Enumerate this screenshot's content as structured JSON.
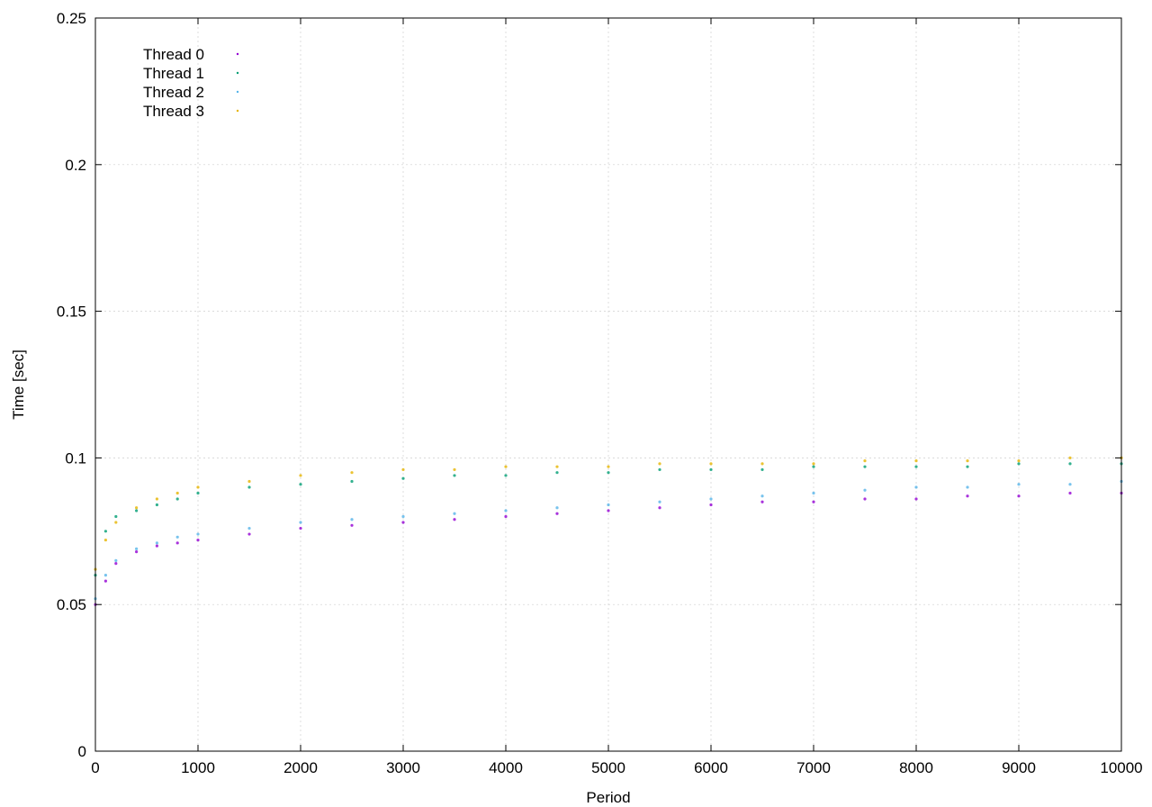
{
  "chart_data": {
    "type": "scatter",
    "title": "",
    "xlabel": "Period",
    "ylabel": "Time [sec]",
    "xlim": [
      0,
      10000
    ],
    "ylim": [
      0,
      0.25
    ],
    "x_ticks": [
      0,
      1000,
      2000,
      3000,
      4000,
      5000,
      6000,
      7000,
      8000,
      9000,
      10000
    ],
    "x_tick_labels": [
      "0",
      "1000",
      "2000",
      "3000",
      "4000",
      "5000",
      "6000",
      "7000",
      "8000",
      "9000",
      "10000"
    ],
    "y_ticks": [
      0,
      0.05,
      0.1,
      0.15,
      0.2,
      0.25
    ],
    "y_tick_labels": [
      "0",
      "0.05",
      "0.1",
      "0.15",
      "0.2",
      "0.25"
    ],
    "grid": true,
    "legend_position": "top-left",
    "series": [
      {
        "name": "Thread 0",
        "color": "#9400d3",
        "x": [
          0,
          100,
          200,
          400,
          600,
          800,
          1000,
          1500,
          2000,
          2500,
          3000,
          3500,
          4000,
          4500,
          5000,
          5500,
          6000,
          6500,
          7000,
          7500,
          8000,
          8500,
          9000,
          9500,
          10000
        ],
        "y": [
          0.05,
          0.058,
          0.064,
          0.068,
          0.07,
          0.071,
          0.072,
          0.074,
          0.076,
          0.077,
          0.078,
          0.079,
          0.08,
          0.081,
          0.082,
          0.083,
          0.084,
          0.085,
          0.085,
          0.086,
          0.086,
          0.087,
          0.087,
          0.088,
          0.088
        ]
      },
      {
        "name": "Thread 1",
        "color": "#009e73",
        "x": [
          0,
          100,
          200,
          400,
          600,
          800,
          1000,
          1500,
          2000,
          2500,
          3000,
          3500,
          4000,
          4500,
          5000,
          5500,
          6000,
          6500,
          7000,
          7500,
          8000,
          8500,
          9000,
          9500,
          10000
        ],
        "y": [
          0.06,
          0.075,
          0.08,
          0.082,
          0.084,
          0.086,
          0.088,
          0.09,
          0.091,
          0.092,
          0.093,
          0.094,
          0.094,
          0.095,
          0.095,
          0.096,
          0.096,
          0.096,
          0.097,
          0.097,
          0.097,
          0.097,
          0.098,
          0.098,
          0.098
        ]
      },
      {
        "name": "Thread 2",
        "color": "#56b4e9",
        "x": [
          0,
          100,
          200,
          400,
          600,
          800,
          1000,
          1500,
          2000,
          2500,
          3000,
          3500,
          4000,
          4500,
          5000,
          5500,
          6000,
          6500,
          7000,
          7500,
          8000,
          8500,
          9000,
          9500,
          10000
        ],
        "y": [
          0.052,
          0.06,
          0.065,
          0.069,
          0.071,
          0.073,
          0.074,
          0.076,
          0.078,
          0.079,
          0.08,
          0.081,
          0.082,
          0.083,
          0.084,
          0.085,
          0.086,
          0.087,
          0.088,
          0.089,
          0.09,
          0.09,
          0.091,
          0.091,
          0.092
        ]
      },
      {
        "name": "Thread 3",
        "color": "#e6b400",
        "x": [
          0,
          100,
          200,
          400,
          600,
          800,
          1000,
          1500,
          2000,
          2500,
          3000,
          3500,
          4000,
          4500,
          5000,
          5500,
          6000,
          6500,
          7000,
          7500,
          8000,
          8500,
          9000,
          9500,
          10000
        ],
        "y": [
          0.062,
          0.072,
          0.078,
          0.083,
          0.086,
          0.088,
          0.09,
          0.092,
          0.094,
          0.095,
          0.096,
          0.096,
          0.097,
          0.097,
          0.097,
          0.098,
          0.098,
          0.098,
          0.098,
          0.099,
          0.099,
          0.099,
          0.099,
          0.1,
          0.1
        ]
      }
    ]
  }
}
